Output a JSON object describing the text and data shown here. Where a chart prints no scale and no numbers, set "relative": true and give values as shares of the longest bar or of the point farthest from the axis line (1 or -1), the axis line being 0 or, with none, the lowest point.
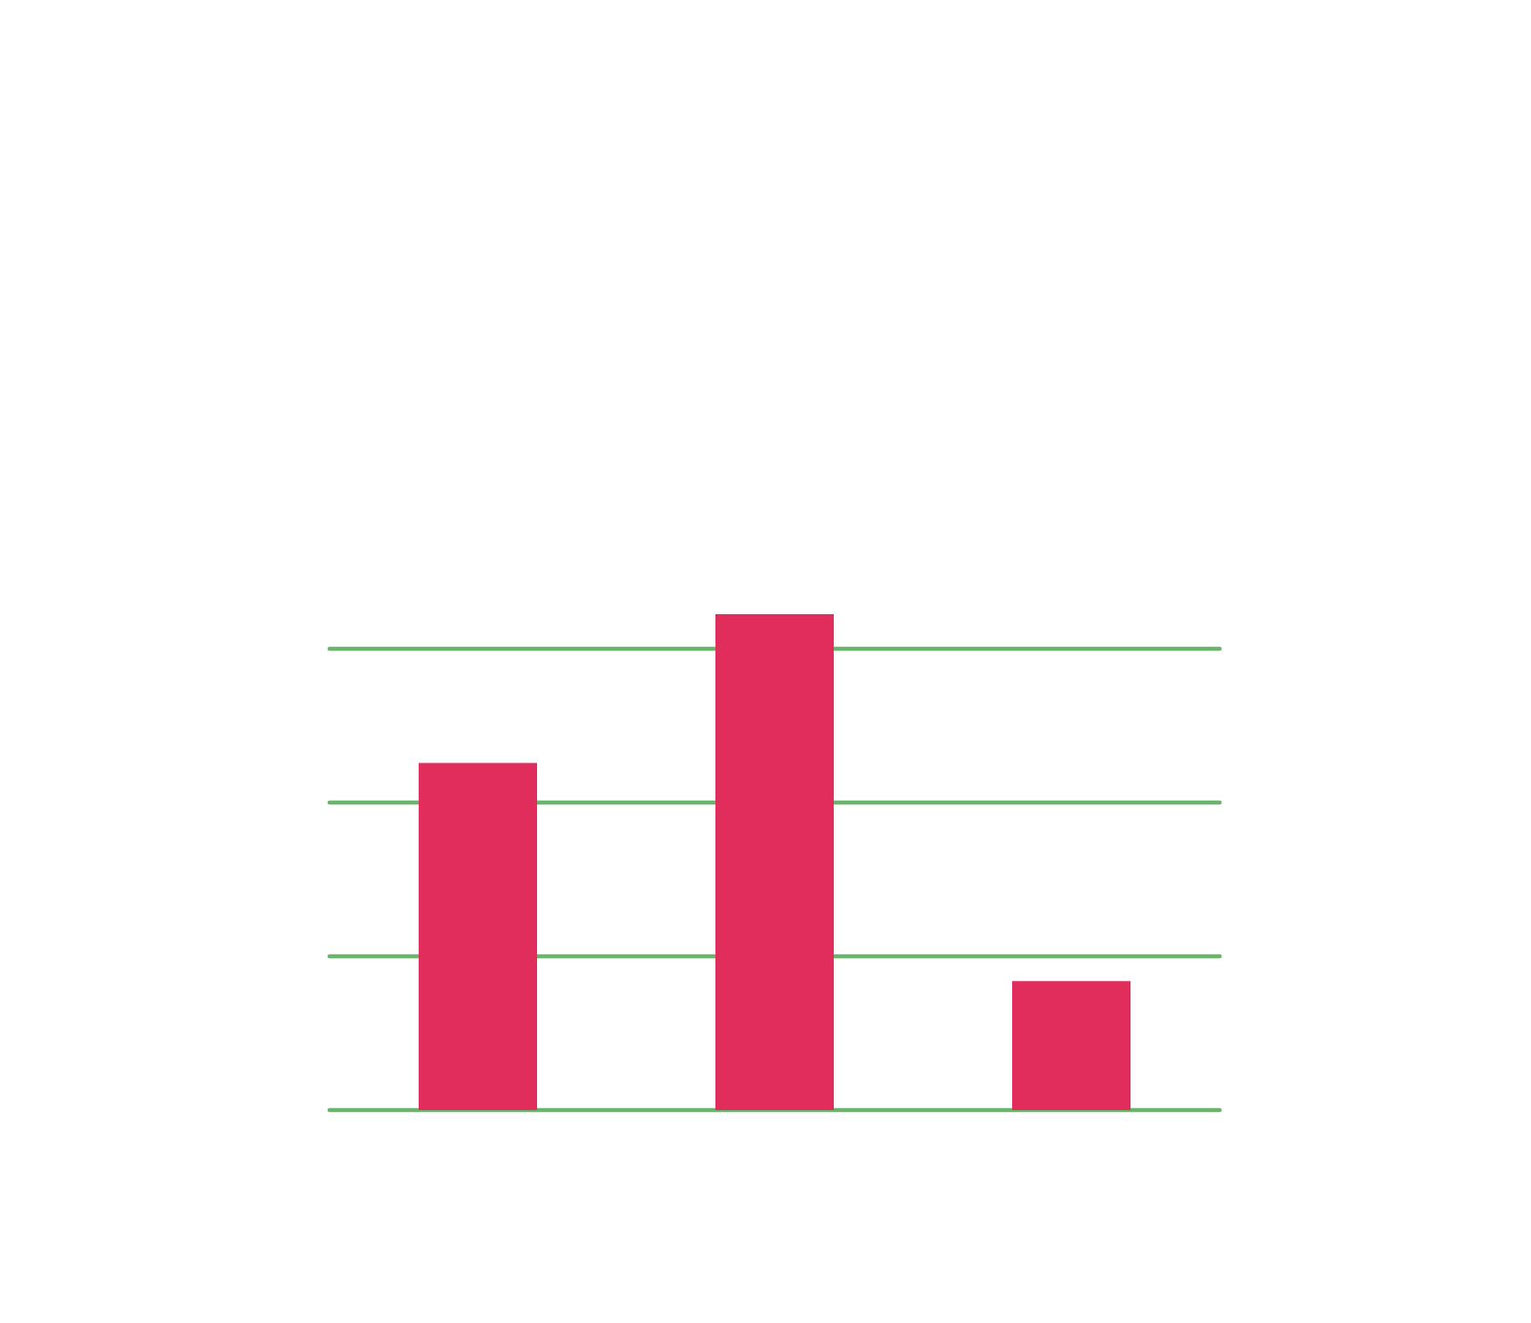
{
  "chart_data": {
    "type": "bar",
    "relative": true,
    "categories": [
      null,
      null,
      null
    ],
    "values": [
      0.7,
      1,
      0.26
    ],
    "color": "#e02d5c",
    "ref_lines": [
      {
        "axis": "y",
        "value": 0,
        "color": "#6ab46e"
      },
      {
        "axis": "y",
        "value": 0.31,
        "color": "#6ab46e"
      },
      {
        "axis": "y",
        "value": 0.62,
        "color": "#6ab46e"
      },
      {
        "axis": "y",
        "value": 0.93,
        "color": "#6ab46e"
      }
    ]
  }
}
